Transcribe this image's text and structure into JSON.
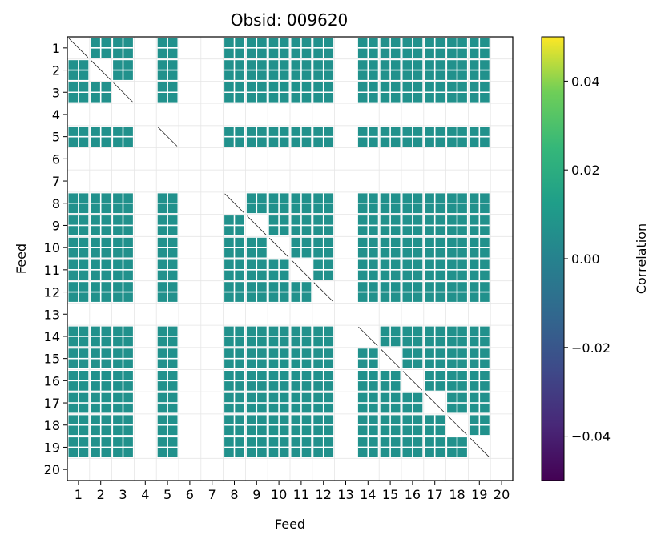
{
  "chart_data": {
    "type": "heatmap",
    "title": "Obsid: 009620",
    "xlabel": "Feed",
    "ylabel": "Feed",
    "x_ticks": [
      "1",
      "2",
      "3",
      "4",
      "5",
      "6",
      "7",
      "8",
      "9",
      "10",
      "11",
      "12",
      "13",
      "14",
      "15",
      "16",
      "17",
      "18",
      "19",
      "20"
    ],
    "y_ticks": [
      "1",
      "2",
      "3",
      "4",
      "5",
      "6",
      "7",
      "8",
      "9",
      "10",
      "11",
      "12",
      "13",
      "14",
      "15",
      "16",
      "17",
      "18",
      "19",
      "20"
    ],
    "active_feeds": [
      1,
      2,
      3,
      5,
      8,
      9,
      10,
      11,
      12,
      14,
      15,
      16,
      17,
      18,
      19
    ],
    "off_diagonal_value": 0.0,
    "colorbar": {
      "label": "Correlation",
      "colormap": "viridis",
      "vmin": -0.05,
      "vmax": 0.05,
      "ticks": [
        "0.04",
        "0.02",
        "0.00",
        "−0.02",
        "−0.04"
      ],
      "tick_values": [
        0.04,
        0.02,
        0.0,
        -0.02,
        -0.04
      ]
    },
    "cell_color": "#21918c",
    "grid_color": "#e6e6e6",
    "diagonal_color": "#222222"
  }
}
